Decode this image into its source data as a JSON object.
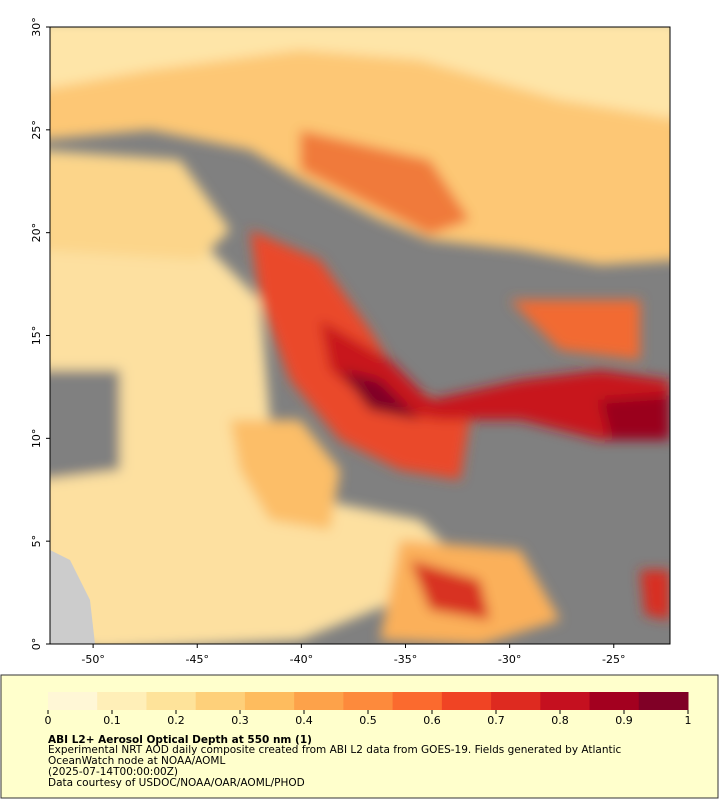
{
  "map": {
    "xaxis": {
      "lim": [
        -52.07,
        -22.3
      ],
      "ticks": [
        {
          "value": -50,
          "label": "-50°"
        },
        {
          "value": -45,
          "label": "-45°"
        },
        {
          "value": -40,
          "label": "-40°"
        },
        {
          "value": -35,
          "label": "-35°"
        },
        {
          "value": -30,
          "label": "-30°"
        },
        {
          "value": -25,
          "label": "-25°"
        }
      ]
    },
    "yaxis": {
      "lim": [
        0,
        30
      ],
      "ticks": [
        {
          "value": 0,
          "label": "0°"
        },
        {
          "value": 5,
          "label": "5°"
        },
        {
          "value": 10,
          "label": "10°"
        },
        {
          "value": 15,
          "label": "15°"
        },
        {
          "value": 20,
          "label": "20°"
        },
        {
          "value": 25,
          "label": "25°"
        },
        {
          "value": 30,
          "label": "30°"
        }
      ]
    },
    "colorbar": {
      "lim": [
        0,
        1
      ],
      "ticks": [
        0,
        0.1,
        0.2,
        0.3,
        0.4,
        0.5,
        0.6,
        0.7,
        0.8,
        0.9,
        1
      ],
      "colors": [
        "#fff7d6",
        "#ffefb8",
        "#fee39a",
        "#fed07a",
        "#febc5e",
        "#fda24a",
        "#fd8a3c",
        "#fb6a2e",
        "#f04424",
        "#de2a20",
        "#c5101f",
        "#a3001f",
        "#800026"
      ]
    },
    "caption": {
      "title": "ABI L2+ Aerosol Optical Depth at 550 nm (1)",
      "lines": [
        "Experimental NRT AOD daily composite created from ABI L2 data from GOES-19. Fields generated by Atlantic",
        "OceanWatch node at NOAA/AOML",
        "(2025-07-14T00:00:00Z)",
        "Data courtesy of USDOC/NOAA/OAR/AOML/PHOD"
      ]
    }
  }
}
